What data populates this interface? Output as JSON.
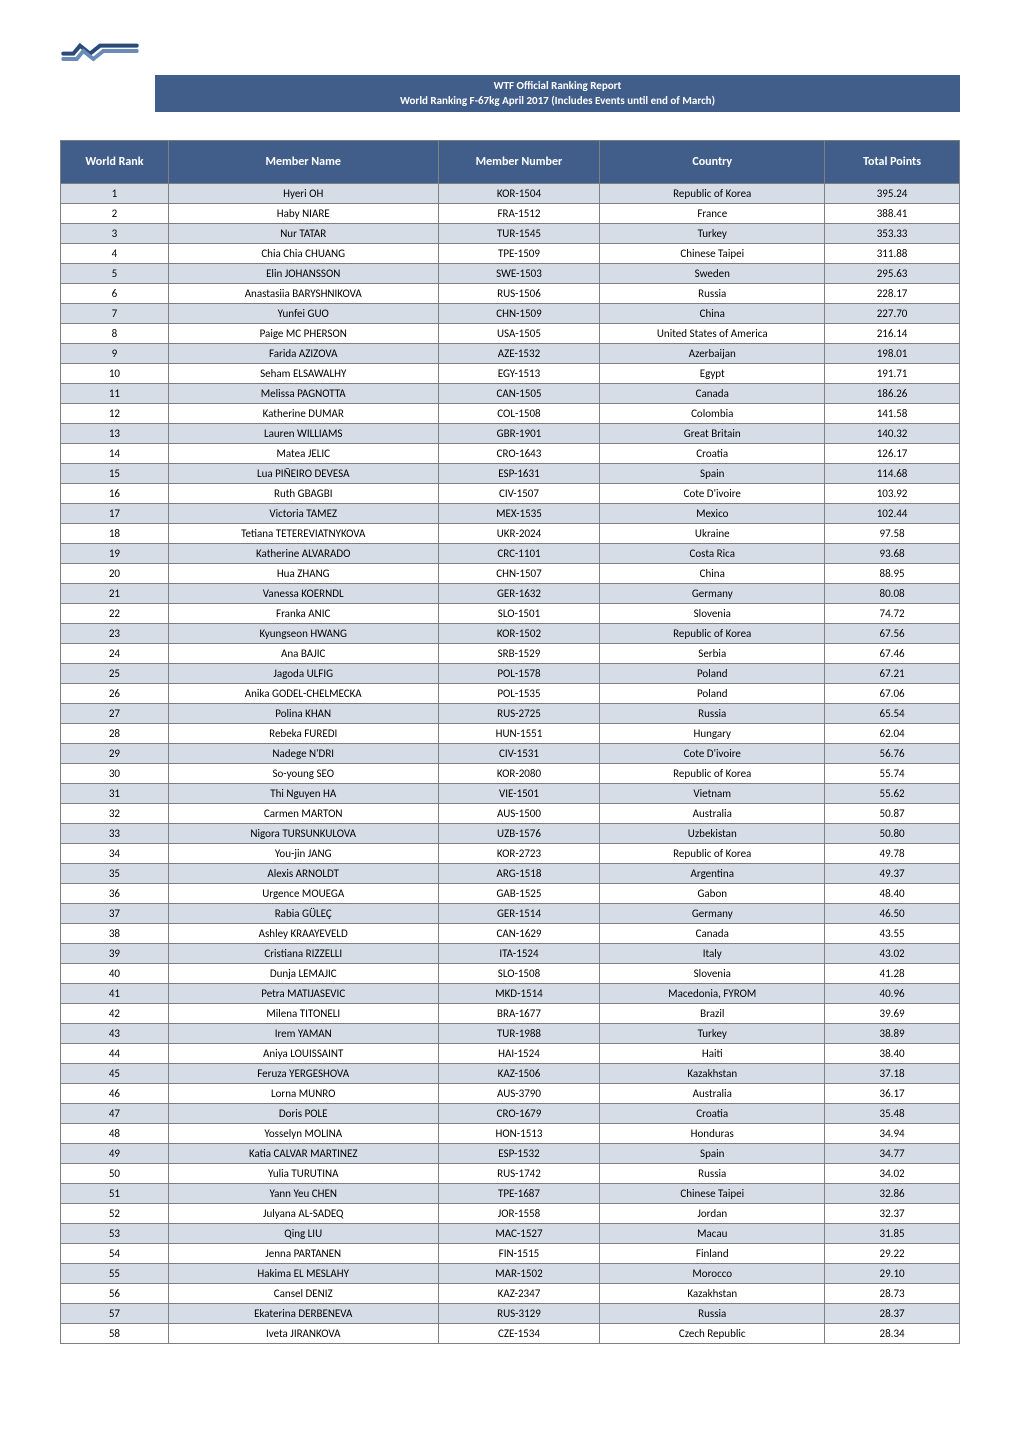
{
  "header": {
    "title_line1": "WTF Official Ranking Report",
    "title_line2": "World Ranking F-67kg April 2017  (Includes Events until end of March)"
  },
  "table": {
    "columns": [
      "World Rank",
      "Member Name",
      "Member Number",
      "Country",
      "Total Points"
    ],
    "column_widths_pct": [
      12,
      30,
      18,
      25,
      15
    ],
    "header_bg": "#415e8a",
    "header_fg": "#ffffff",
    "row_bg_odd": "#d6dde6",
    "row_bg_even": "#ffffff",
    "border_color": "#7f7f7f",
    "header_fontsize": 12,
    "cell_fontsize": 11,
    "rows": [
      [
        "1",
        "Hyeri OH",
        "KOR-1504",
        "Republic of Korea",
        "395.24"
      ],
      [
        "2",
        "Haby NIARE",
        "FRA-1512",
        "France",
        "388.41"
      ],
      [
        "3",
        "Nur TATAR",
        "TUR-1545",
        "Turkey",
        "353.33"
      ],
      [
        "4",
        "Chia Chia CHUANG",
        "TPE-1509",
        "Chinese Taipei",
        "311.88"
      ],
      [
        "5",
        "Elin JOHANSSON",
        "SWE-1503",
        "Sweden",
        "295.63"
      ],
      [
        "6",
        "Anastasiia BARYSHNIKOVA",
        "RUS-1506",
        "Russia",
        "228.17"
      ],
      [
        "7",
        "Yunfei GUO",
        "CHN-1509",
        "China",
        "227.70"
      ],
      [
        "8",
        "Paige MC PHERSON",
        "USA-1505",
        "United States of America",
        "216.14"
      ],
      [
        "9",
        "Farida AZIZOVA",
        "AZE-1532",
        "Azerbaijan",
        "198.01"
      ],
      [
        "10",
        "Seham ELSAWALHY",
        "EGY-1513",
        "Egypt",
        "191.71"
      ],
      [
        "11",
        "Melissa PAGNOTTA",
        "CAN-1505",
        "Canada",
        "186.26"
      ],
      [
        "12",
        "Katherine DUMAR",
        "COL-1508",
        "Colombia",
        "141.58"
      ],
      [
        "13",
        "Lauren WILLIAMS",
        "GBR-1901",
        "Great Britain",
        "140.32"
      ],
      [
        "14",
        "Matea JELIC",
        "CRO-1643",
        "Croatia",
        "126.17"
      ],
      [
        "15",
        "Lua PIÑEIRO DEVESA",
        "ESP-1631",
        "Spain",
        "114.68"
      ],
      [
        "16",
        "Ruth GBAGBI",
        "CIV-1507",
        "Cote D'ivoire",
        "103.92"
      ],
      [
        "17",
        "Victoria TAMEZ",
        "MEX-1535",
        "Mexico",
        "102.44"
      ],
      [
        "18",
        "Tetiana TETEREVIATNYKOVA",
        "UKR-2024",
        "Ukraine",
        "97.58"
      ],
      [
        "19",
        "Katherine ALVARADO",
        "CRC-1101",
        "Costa Rica",
        "93.68"
      ],
      [
        "20",
        "Hua ZHANG",
        "CHN-1507",
        "China",
        "88.95"
      ],
      [
        "21",
        "Vanessa KOERNDL",
        "GER-1632",
        "Germany",
        "80.08"
      ],
      [
        "22",
        "Franka ANIC",
        "SLO-1501",
        "Slovenia",
        "74.72"
      ],
      [
        "23",
        "Kyungseon HWANG",
        "KOR-1502",
        "Republic of Korea",
        "67.56"
      ],
      [
        "24",
        "Ana BAJIC",
        "SRB-1529",
        "Serbia",
        "67.46"
      ],
      [
        "25",
        "Jagoda ULFIG",
        "POL-1578",
        "Poland",
        "67.21"
      ],
      [
        "26",
        "Anika GODEL-CHELMECKA",
        "POL-1535",
        "Poland",
        "67.06"
      ],
      [
        "27",
        "Polina KHAN",
        "RUS-2725",
        "Russia",
        "65.54"
      ],
      [
        "28",
        "Rebeka FUREDI",
        "HUN-1551",
        "Hungary",
        "62.04"
      ],
      [
        "29",
        "Nadege N'DRI",
        "CIV-1531",
        "Cote D'ivoire",
        "56.76"
      ],
      [
        "30",
        "So-young SEO",
        "KOR-2080",
        "Republic of Korea",
        "55.74"
      ],
      [
        "31",
        "Thi Nguyen HA",
        "VIE-1501",
        "Vietnam",
        "55.62"
      ],
      [
        "32",
        "Carmen MARTON",
        "AUS-1500",
        "Australia",
        "50.87"
      ],
      [
        "33",
        "Nigora TURSUNKULOVA",
        "UZB-1576",
        "Uzbekistan",
        "50.80"
      ],
      [
        "34",
        "You-jin JANG",
        "KOR-2723",
        "Republic of Korea",
        "49.78"
      ],
      [
        "35",
        "Alexis ARNOLDT",
        "ARG-1518",
        "Argentina",
        "49.37"
      ],
      [
        "36",
        "Urgence MOUEGA",
        "GAB-1525",
        "Gabon",
        "48.40"
      ],
      [
        "37",
        "Rabia GÜLEÇ",
        "GER-1514",
        "Germany",
        "46.50"
      ],
      [
        "38",
        "Ashley KRAAYEVELD",
        "CAN-1629",
        "Canada",
        "43.55"
      ],
      [
        "39",
        "Cristiana RIZZELLI",
        "ITA-1524",
        "Italy",
        "43.02"
      ],
      [
        "40",
        "Dunja LEMAJIC",
        "SLO-1508",
        "Slovenia",
        "41.28"
      ],
      [
        "41",
        "Petra MATIJASEVIC",
        "MKD-1514",
        "Macedonia, FYROM",
        "40.96"
      ],
      [
        "42",
        "Milena TITONELI",
        "BRA-1677",
        "Brazil",
        "39.69"
      ],
      [
        "43",
        "Irem YAMAN",
        "TUR-1988",
        "Turkey",
        "38.89"
      ],
      [
        "44",
        "Aniya LOUISSAINT",
        "HAI-1524",
        "Haiti",
        "38.40"
      ],
      [
        "45",
        "Feruza YERGESHOVA",
        "KAZ-1506",
        "Kazakhstan",
        "37.18"
      ],
      [
        "46",
        "Lorna MUNRO",
        "AUS-3790",
        "Australia",
        "36.17"
      ],
      [
        "47",
        "Doris POLE",
        "CRO-1679",
        "Croatia",
        "35.48"
      ],
      [
        "48",
        "Yosselyn MOLINA",
        "HON-1513",
        "Honduras",
        "34.94"
      ],
      [
        "49",
        "Katia CALVAR MARTINEZ",
        "ESP-1532",
        "Spain",
        "34.77"
      ],
      [
        "50",
        "Yulia TURUTINA",
        "RUS-1742",
        "Russia",
        "34.02"
      ],
      [
        "51",
        "Yann Yeu CHEN",
        "TPE-1687",
        "Chinese Taipei",
        "32.86"
      ],
      [
        "52",
        "Julyana AL-SADEQ",
        "JOR-1558",
        "Jordan",
        "32.37"
      ],
      [
        "53",
        "Qing LIU",
        "MAC-1527",
        "Macau",
        "31.85"
      ],
      [
        "54",
        "Jenna PARTANEN",
        "FIN-1515",
        "Finland",
        "29.22"
      ],
      [
        "55",
        "Hakima EL MESLAHY",
        "MAR-1502",
        "Morocco",
        "29.10"
      ],
      [
        "56",
        "Cansel DENIZ",
        "KAZ-2347",
        "Kazakhstan",
        "28.73"
      ],
      [
        "57",
        "Ekaterina DERBENEVA",
        "RUS-3129",
        "Russia",
        "28.37"
      ],
      [
        "58",
        "Iveta JIRANKOVA",
        "CZE-1534",
        "Czech Republic",
        "28.34"
      ]
    ]
  },
  "colors": {
    "brand_blue": "#415e8a",
    "page_bg": "#ffffff",
    "text_dark": "#000000",
    "text_light": "#ffffff"
  },
  "logo": {
    "alt": "WTF"
  }
}
